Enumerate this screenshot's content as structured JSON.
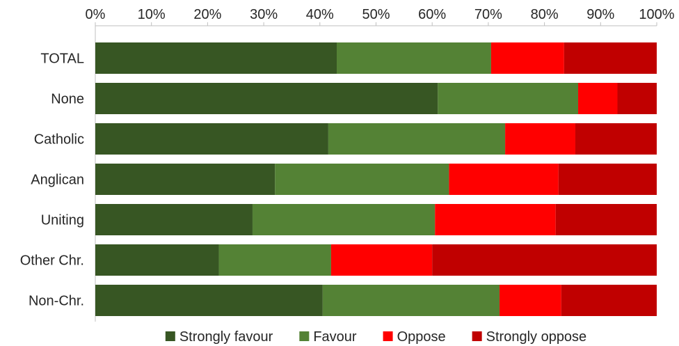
{
  "chart_data": {
    "type": "bar",
    "orientation": "horizontal",
    "stacked": "100%",
    "categories": [
      "TOTAL",
      "None",
      "Catholic",
      "Anglican",
      "Uniting",
      "Other Chr.",
      "Non-Chr."
    ],
    "series": [
      {
        "name": "Strongly favour",
        "color": "#375623",
        "values": [
          43,
          61,
          41.5,
          32,
          28,
          22,
          40.5
        ]
      },
      {
        "name": "Favour",
        "color": "#548235",
        "values": [
          27.5,
          25,
          31.5,
          31,
          32.5,
          20,
          31.5
        ]
      },
      {
        "name": "Oppose",
        "color": "#ff0000",
        "values": [
          13,
          7,
          12.5,
          19.5,
          21.5,
          18,
          11
        ]
      },
      {
        "name": "Strongly oppose",
        "color": "#c00000",
        "values": [
          16.5,
          7,
          14.5,
          17.5,
          18,
          40,
          17
        ]
      }
    ],
    "xlim": [
      0,
      100
    ],
    "xticks": [
      "0%",
      "10%",
      "20%",
      "30%",
      "40%",
      "50%",
      "60%",
      "70%",
      "80%",
      "90%",
      "100%"
    ],
    "x_axis_position": "top",
    "legend_position": "bottom",
    "grid": false
  }
}
